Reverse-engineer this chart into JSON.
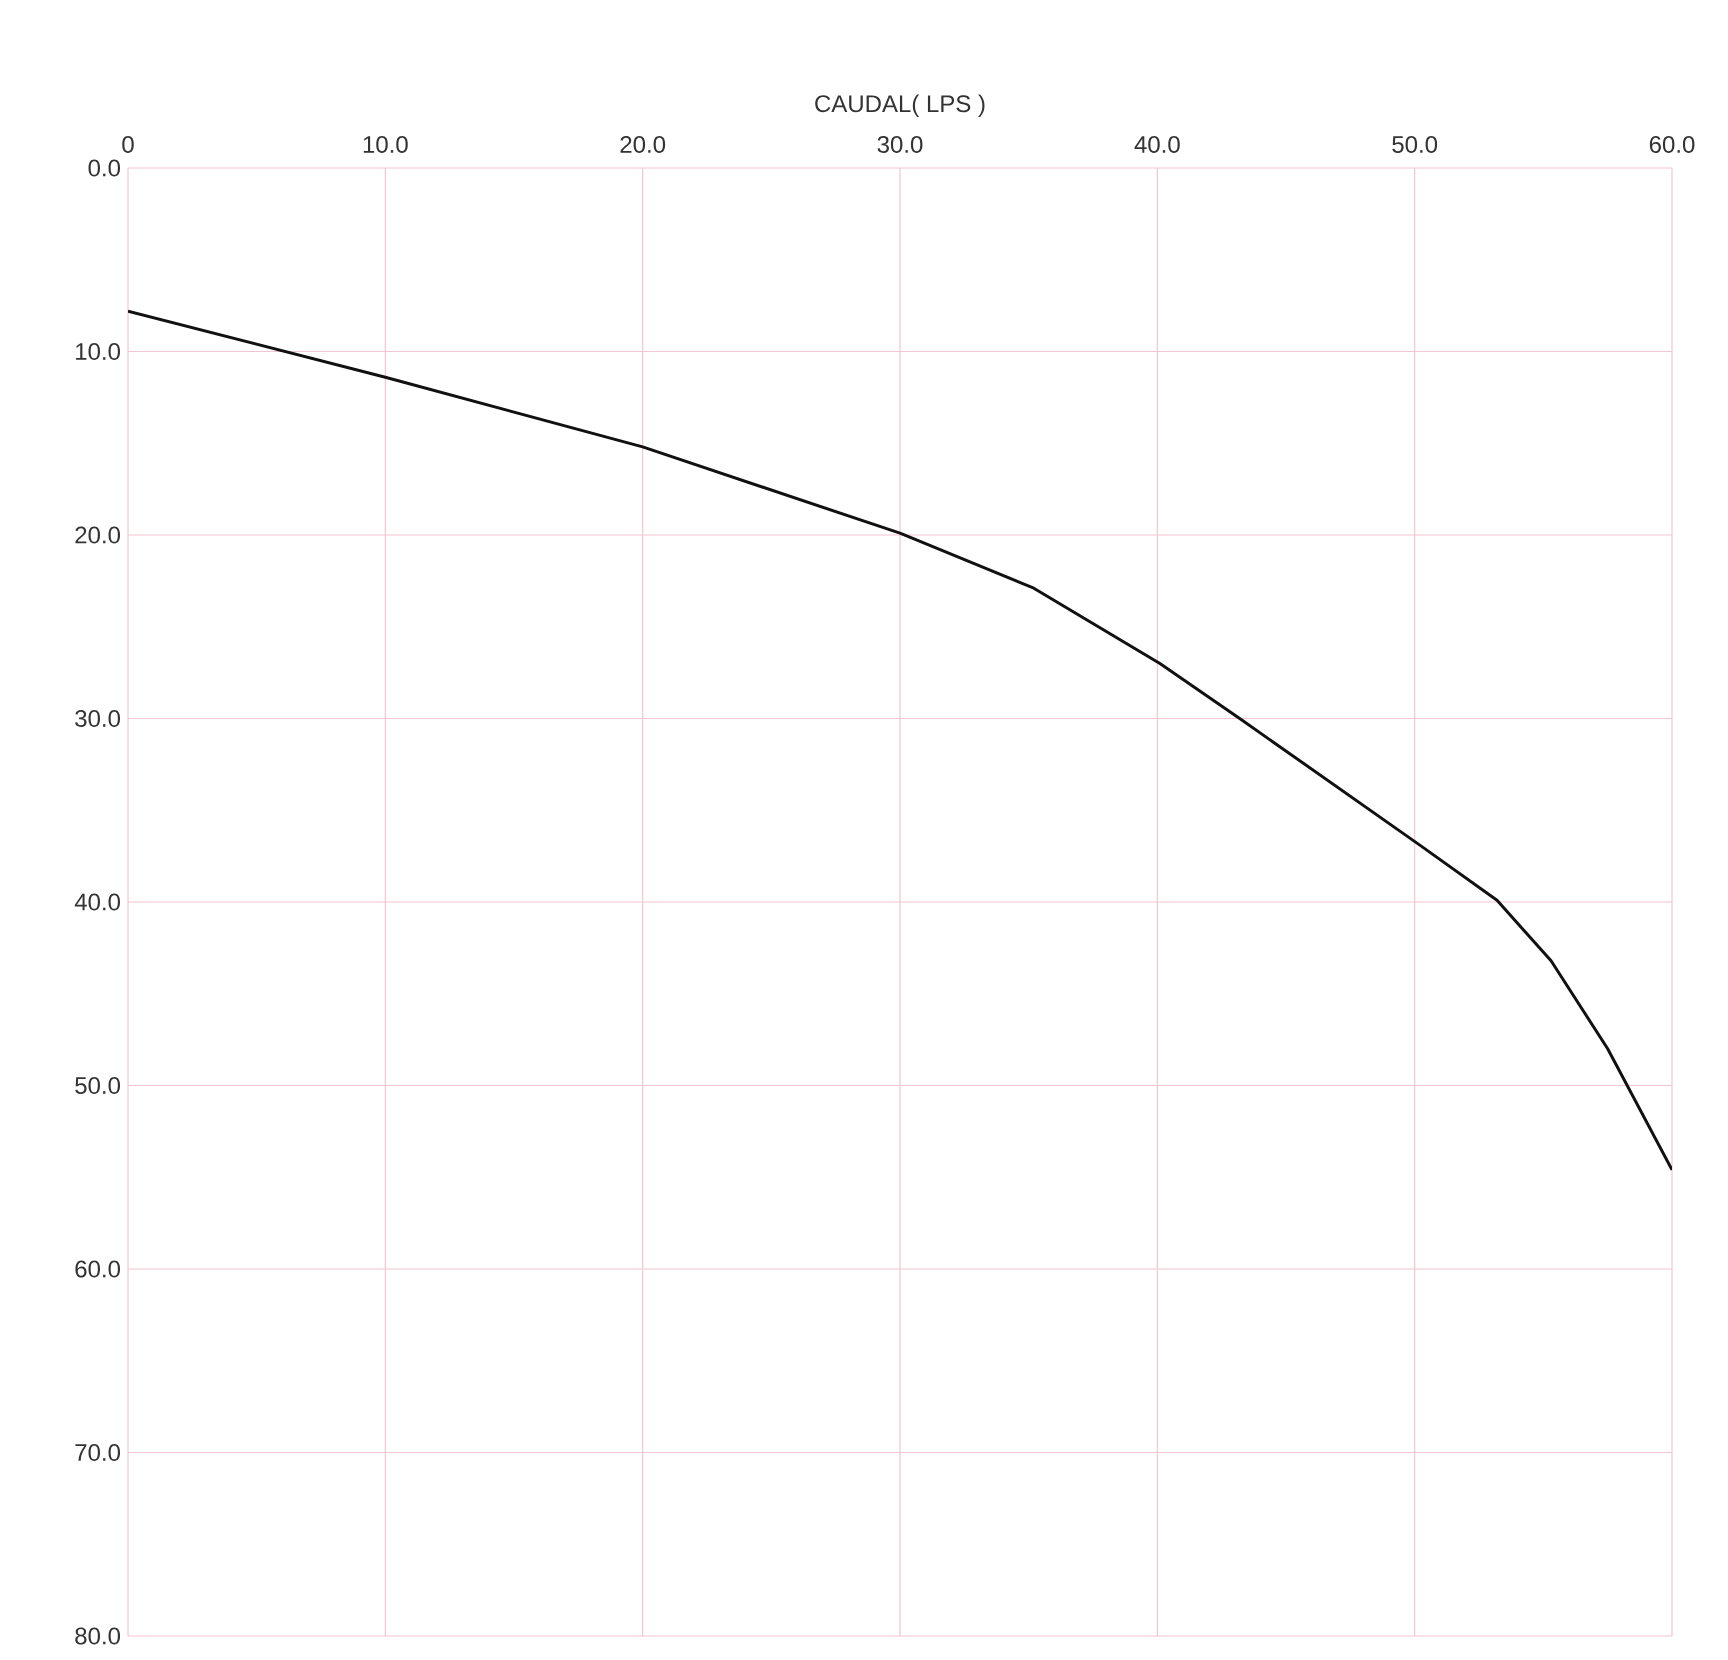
{
  "chart_data": {
    "type": "line",
    "xlabel": "CAUDAL( LPS )",
    "x": [
      0,
      10,
      20,
      30,
      35.2,
      40.1,
      43.2,
      50.2,
      53.2,
      55.3,
      57.5,
      60
    ],
    "series": [
      {
        "color": "#111111",
        "values": [
          7.8,
          11.4,
          15.2,
          19.9,
          22.9,
          27.0,
          30.0,
          36.9,
          39.9,
          43.2,
          48.0,
          54.6
        ]
      }
    ],
    "xlim": [
      0,
      60
    ],
    "ylim": [
      80,
      0
    ],
    "xticks": [
      0,
      {
        "value": 10,
        "label": "10.0"
      },
      {
        "value": 20,
        "label": "20.0"
      },
      {
        "value": 30,
        "label": "30.0"
      },
      {
        "value": 40,
        "label": "40.0"
      },
      {
        "value": 50,
        "label": "50.0"
      },
      {
        "value": 60,
        "label": "60.0"
      }
    ],
    "yticks": [
      {
        "value": 0,
        "label": "0.0"
      },
      {
        "value": 10,
        "label": "10.0"
      },
      {
        "value": 20,
        "label": "20.0"
      },
      {
        "value": 30,
        "label": "30.0"
      },
      {
        "value": 40,
        "label": "40.0"
      },
      {
        "value": 50,
        "label": "50.0"
      },
      {
        "value": 60,
        "label": "60.0"
      },
      {
        "value": 70,
        "label": "70.0"
      },
      {
        "value": 80,
        "label": "80.0"
      }
    ],
    "grid": true,
    "line_style": "solid",
    "marker": "none"
  }
}
